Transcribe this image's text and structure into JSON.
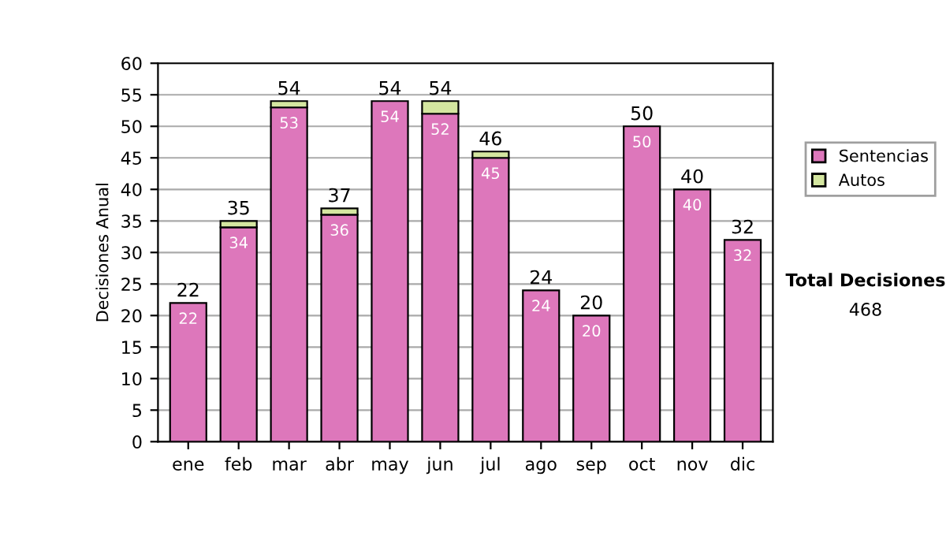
{
  "chart_data": {
    "type": "bar",
    "stacked": true,
    "ylabel": "Decisiones Anual",
    "categories": [
      "ene",
      "feb",
      "mar",
      "abr",
      "may",
      "jun",
      "jul",
      "ago",
      "sep",
      "oct",
      "nov",
      "dic"
    ],
    "series": [
      {
        "name": "Sentencias",
        "color": "#dd77bb",
        "values": [
          22,
          34,
          53,
          36,
          54,
          52,
          45,
          24,
          20,
          50,
          40,
          32
        ],
        "value_labels": [
          "22",
          "34",
          "53",
          "36",
          "54",
          "52",
          "45",
          "24",
          "20",
          "50",
          "40",
          "32"
        ]
      },
      {
        "name": "Autos",
        "color": "#d4e6a0",
        "values": [
          0,
          1,
          1,
          1,
          0,
          2,
          1,
          0,
          0,
          0,
          0,
          0
        ]
      }
    ],
    "totals": [
      "22",
      "35",
      "54",
      "37",
      "54",
      "54",
      "46",
      "24",
      "20",
      "50",
      "40",
      "32"
    ],
    "ylim": [
      0,
      60
    ],
    "yticks": [
      0,
      5,
      10,
      15,
      20,
      25,
      30,
      35,
      40,
      45,
      50,
      55,
      60
    ],
    "grid": "y",
    "legend": "right",
    "annotations": [
      "Total Decisiones",
      "468"
    ]
  }
}
